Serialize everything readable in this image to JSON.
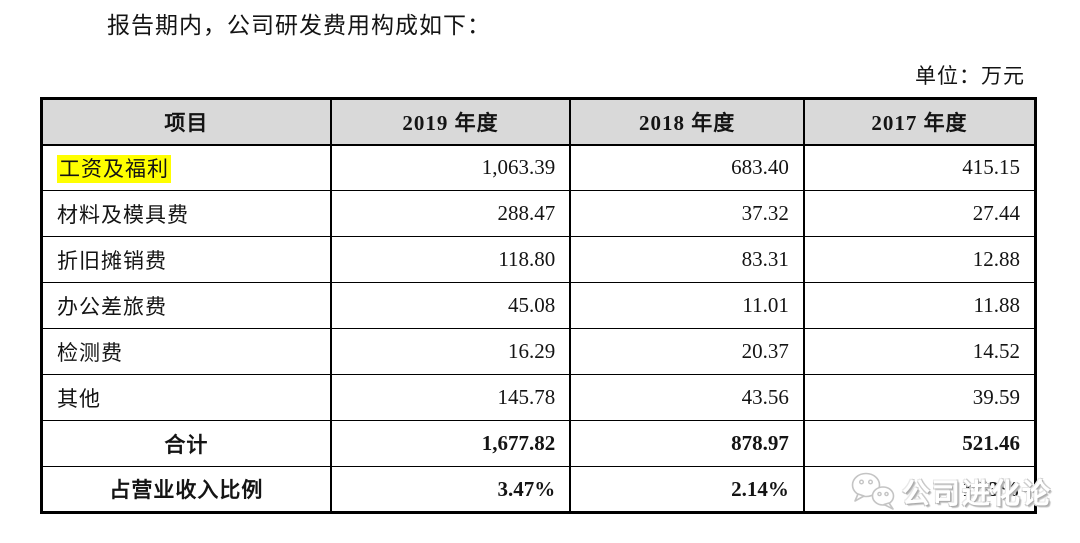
{
  "page": {
    "intro_text": "报告期内，公司研发费用构成如下：",
    "unit_label": "单位：万元"
  },
  "table": {
    "headers": [
      "项目",
      "2019 年度",
      "2018 年度",
      "2017 年度"
    ],
    "rows": [
      {
        "label": "工资及福利",
        "highlighted": true,
        "values": [
          "1,063.39",
          "683.40",
          "415.15"
        ]
      },
      {
        "label": "材料及模具费",
        "highlighted": false,
        "values": [
          "288.47",
          "37.32",
          "27.44"
        ]
      },
      {
        "label": "折旧摊销费",
        "highlighted": false,
        "values": [
          "118.80",
          "83.31",
          "12.88"
        ]
      },
      {
        "label": "办公差旅费",
        "highlighted": false,
        "values": [
          "45.08",
          "11.01",
          "11.88"
        ]
      },
      {
        "label": "检测费",
        "highlighted": false,
        "values": [
          "16.29",
          "20.37",
          "14.52"
        ]
      },
      {
        "label": "其他",
        "highlighted": false,
        "values": [
          "145.78",
          "43.56",
          "39.59"
        ]
      }
    ],
    "summary_rows": [
      {
        "label": "合计",
        "values": [
          "1,677.82",
          "878.97",
          "521.46"
        ]
      },
      {
        "label": "占营业收入比例",
        "values": [
          "3.47%",
          "2.14%",
          "1.53%"
        ]
      }
    ],
    "header_bg": "#d9d9d9",
    "highlight_color": "#ffff00"
  },
  "watermark": {
    "icon": "wechat-icon",
    "text": "公司进化论"
  }
}
